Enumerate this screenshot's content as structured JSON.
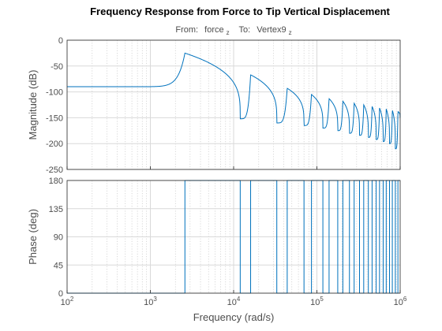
{
  "chart_data": {
    "type": "line",
    "title": "Frequency Response from Force to Tip Vertical Displacement",
    "subtitle": {
      "from_label": "From:",
      "from_value": "force",
      "from_sub": "z",
      "to_label": "To:",
      "to_value": "Vertex9",
      "to_sub": "z"
    },
    "xlabel": "Frequency  (rad/s)",
    "xscale": "log",
    "xlim": [
      100,
      1000000
    ],
    "x_ticks": [
      {
        "base": "10",
        "exp": "2"
      },
      {
        "base": "10",
        "exp": "3"
      },
      {
        "base": "10",
        "exp": "4"
      },
      {
        "base": "10",
        "exp": "5"
      },
      {
        "base": "10",
        "exp": "6"
      }
    ],
    "grid": true,
    "line_color": "#0072BD",
    "resonance_frequencies": [
      2600,
      16000,
      44000,
      86000,
      140000,
      205000,
      280000,
      365000,
      460000,
      565000,
      680000,
      805000,
      940000
    ],
    "antiresonance_frequencies": [
      12000,
      33000,
      70000,
      118000,
      178000,
      246000,
      325000,
      415000,
      515000,
      625000,
      745000,
      875000
    ],
    "magnitude": {
      "ylabel": "Magnitude (dB)",
      "ylim": [
        -250,
        0
      ],
      "y_ticks": [
        "0",
        "-50",
        "-100",
        "-150",
        "-200",
        "-250"
      ],
      "static_gain_db": -90,
      "peak_db": [
        -25,
        -67,
        -93,
        -105,
        -113,
        -118,
        -122,
        -125,
        -128,
        -131,
        -133,
        -135,
        -138
      ],
      "notch_db": [
        -152,
        -160,
        -165,
        -170,
        -175,
        -180,
        -184,
        -188,
        -192,
        -196,
        -200,
        -210
      ]
    },
    "phase": {
      "ylabel": "Phase (deg)",
      "ylim": [
        0,
        180
      ],
      "y_ticks": [
        "180",
        "135",
        "90",
        "45",
        "0"
      ],
      "values_deg": [
        0,
        180
      ]
    }
  }
}
